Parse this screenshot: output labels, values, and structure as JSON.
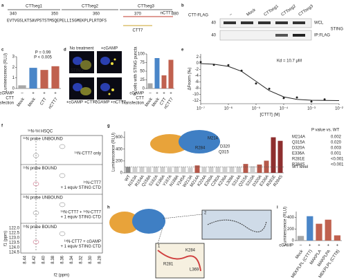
{
  "panels": {
    "letters": [
      "a",
      "b",
      "c",
      "d",
      "e",
      "f",
      "g",
      "h",
      "i"
    ],
    "a": {
      "segments": [
        "CTTseg1",
        "CTTseg2",
        "CTTseg3"
      ],
      "positions": [
        "340",
        "350",
        "360",
        "370",
        "380"
      ],
      "sequence": "EVTVGSLKTSAVPSTSTMSQEPELLISGMEKPLPLRTDFS",
      "nctt7": "nCTT7",
      "ctt7": "CTT7"
    },
    "b": {
      "header": "CTT-FLAG",
      "lanes": [
        "–",
        "Mock",
        "CTTseg1",
        "CTTseg2",
        "CTTseg3"
      ],
      "mw": [
        "40",
        "40"
      ],
      "blots": [
        "WCL",
        "IP:FLAG"
      ],
      "protein": "STING"
    },
    "d": {
      "images": [
        "No treatment",
        "+cGAMP",
        "+cGAMP +CTT7",
        "+cGAMP +nCTT7"
      ],
      "stain": "STING"
    },
    "f": {
      "title": "¹⁵N-¹H HSQC",
      "spectra": [
        {
          "state": "¹⁵N probe UNBOUND",
          "sample": "¹⁵N-CTT7 only",
          "extra": ""
        },
        {
          "state": "¹⁵N probe BOUND",
          "sample": "¹⁵N-CTT7",
          "extra": "+ 1 equiv STING CTD"
        },
        {
          "state": "¹⁵N probe UNBOUND",
          "sample": "¹⁵N-CTT7 + ¹⁵N-CTT7",
          "extra": "+ 1 equiv STING CTD"
        },
        {
          "state": "¹⁵N probe BOUND",
          "sample": "¹⁵N-CTT7 + cGAMP",
          "extra": "+ 1 equiv STING CTD"
        }
      ],
      "ylabel": "f1 (ppm)",
      "xlabel": "f2 (ppm)",
      "yticks": [
        "122.0",
        "122.5",
        "123.0",
        "123.5",
        "124.0",
        "124.5"
      ],
      "xticks": [
        "8.44",
        "8.42",
        "8.40",
        "8.38",
        "8.36",
        "8.34",
        "8.32",
        "8.30",
        "8.28"
      ]
    },
    "g": {
      "residues": [
        "M214",
        "R284",
        "D320",
        "Q315"
      ]
    },
    "h": {
      "labels": [
        "K284",
        "R281",
        "L369"
      ],
      "insets": [
        "1",
        "2"
      ]
    }
  },
  "chart_data": [
    {
      "type": "bar",
      "ylabel": "Luminescence (RLU)",
      "categories": [
        "Mock",
        "Mock",
        "CTT",
        "nCTT7"
      ],
      "values": [
        0.3,
        1.95,
        1.75,
        2.1
      ],
      "colors": [
        "#a8a8a8",
        "#4a86c8",
        "#c0614f",
        "#c0614f"
      ],
      "ylim": [
        0,
        3
      ],
      "yticks": [
        0,
        1,
        2,
        3
      ],
      "row_labels": [
        "cGAMP",
        "CTT",
        "Transfection"
      ],
      "cgamp": [
        "–",
        "+",
        "+",
        "+"
      ],
      "annotations": [
        "P = 0.99",
        "P < 0.005"
      ]
    },
    {
      "type": "bar",
      "ylabel": "% cells with STING puncta",
      "categories": [
        "Mock",
        "Mock",
        "CTT",
        "nCTT7"
      ],
      "values": [
        15,
        88,
        38,
        83
      ],
      "colors": [
        "#a8a8a8",
        "#4a86c8",
        "#c0614f",
        "#c0614f"
      ],
      "ylim": [
        0,
        100
      ],
      "yticks": [
        0,
        25,
        50,
        75,
        100
      ],
      "row_labels": [
        "cGAMP",
        "CTT",
        "Transfection"
      ],
      "cgamp": [
        "–",
        "+",
        "+",
        "+"
      ]
    },
    {
      "type": "scatter",
      "xlabel": "[CTT7] (M)",
      "ylabel": "ΔFnorm (‰)",
      "annotation": "Kd = 10.7 μM",
      "log_x": true,
      "xlim": [
        1e-07,
        0.01
      ],
      "xticks": [
        {
          "value": 1e-07,
          "label": "10⁻⁷"
        },
        {
          "value": 1e-06,
          "label": "10⁻⁶"
        },
        {
          "value": 1e-05,
          "label": "10⁻⁵"
        },
        {
          "value": 0.0001,
          "label": "10⁻⁴"
        },
        {
          "value": 0.001,
          "label": "10⁻³"
        },
        {
          "value": 0.01,
          "label": "10⁻²"
        }
      ],
      "ylim": [
        -13,
        3
      ],
      "yticks": [
        -12,
        -10,
        -8,
        -6,
        -4,
        -2,
        0,
        2
      ],
      "series": [
        {
          "type": "scatter",
          "color": "#222",
          "x": [
            1e-07,
            3e-07,
            1e-06,
            3e-06,
            1e-05,
            3e-05,
            0.0001,
            0.0003,
            0.001,
            0.003
          ],
          "values": [
            0.4,
            -0.5,
            -0.6,
            -2.4,
            -6.5,
            -8.2,
            -11.2,
            -11,
            -12.3,
            -11.6
          ]
        },
        {
          "type": "line",
          "color": "#222",
          "x": [
            1e-07,
            3e-07,
            1e-06,
            3e-06,
            1e-05,
            3e-05,
            0.0001,
            0.0003,
            0.001,
            0.01
          ],
          "values": [
            -0.1,
            -0.3,
            -1,
            -2.6,
            -5.8,
            -8.8,
            -10.8,
            -11.6,
            -11.9,
            -12
          ]
        }
      ]
    },
    {
      "type": "bar",
      "ylabel": "Luminescence (RLU)",
      "categories": [
        "WT",
        "N153A",
        "R154A",
        "Q158A",
        "S162A",
        "E186A",
        "Y167A",
        "N188A",
        "Y245A",
        "W213A",
        "M214A",
        "K224A",
        "E260A",
        "C292A",
        "K236A",
        "L309A",
        "S314A",
        "Q315A",
        "S310A",
        "D320A",
        "E336A",
        "R281E",
        "R284S"
      ],
      "values": [
        100,
        95,
        98,
        92,
        100,
        97,
        90,
        99,
        96,
        88,
        125,
        93,
        100,
        97,
        94,
        101,
        99,
        150,
        110,
        140,
        205,
        600,
        540
      ],
      "colors": [
        "#8c8c8c",
        "#cfcfcf",
        "#cfcfcf",
        "#cfcfcf",
        "#cfcfcf",
        "#cfcfcf",
        "#cfcfcf",
        "#cfcfcf",
        "#cfcfcf",
        "#cfcfcf",
        "#b5584a",
        "#cfcfcf",
        "#cfcfcf",
        "#cfcfcf",
        "#cfcfcf",
        "#cfcfcf",
        "#cfcfcf",
        "#b5584a",
        "#cfcfcf",
        "#b5584a",
        "#b5584a",
        "#8e2f2f",
        "#8e2f2f"
      ],
      "ylim": [
        0,
        700
      ],
      "yticks": [
        0,
        200,
        400,
        600
      ],
      "wt_level": 100,
      "wt_label": "WT level",
      "table_header": "P value vs. WT",
      "table": [
        [
          "M214A",
          "0.002"
        ],
        [
          "Q315A",
          "0.020"
        ],
        [
          "D320A",
          "0.003"
        ],
        [
          "E336A",
          "0.001"
        ],
        [
          "R281E",
          "<0.001"
        ],
        [
          "R284S",
          "<0.001"
        ]
      ]
    },
    {
      "type": "bar",
      "ylabel": "Luminescence (RLU)",
      "categories": [
        "Mock",
        "MEKPLPL (CTT7)",
        "MAKPLA",
        "MAKPLPA",
        "MEKPLPL (CTT8)"
      ],
      "values": [
        80,
        420,
        290,
        360,
        90
      ],
      "colors": [
        "#a8a8a8",
        "#4a86c8",
        "#c0614f",
        "#c0614f",
        "#c0614f"
      ],
      "ylim": [
        0,
        500
      ],
      "yticks": [
        0,
        200,
        400
      ],
      "row_labels": [
        "cGAMP"
      ],
      "cgamp": [
        "–",
        "+",
        "+",
        "+",
        "+"
      ]
    }
  ]
}
